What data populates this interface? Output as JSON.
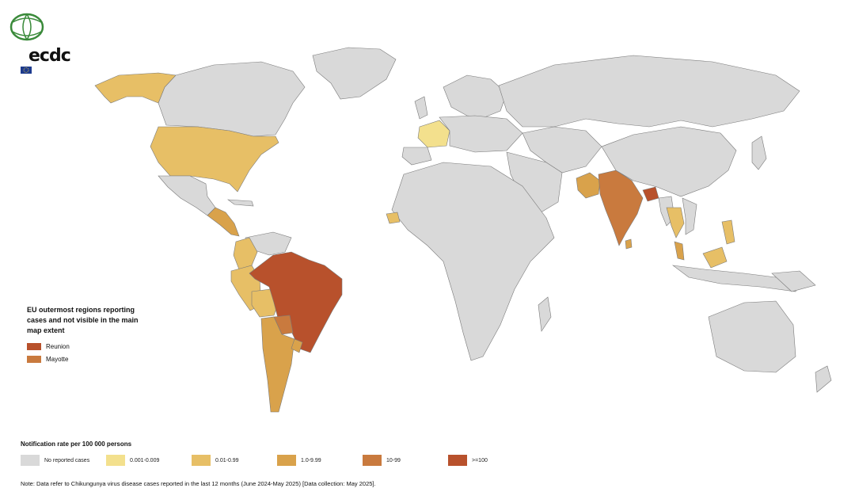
{
  "colors": {
    "no_data": "#d9d9d9",
    "c1": "#f3e08d",
    "c2": "#e7bf66",
    "c3": "#d9a24b",
    "c4": "#c97a3e",
    "c5": "#b8512c",
    "border": "#7a7a7a",
    "ocean": "#ffffff"
  },
  "logo": {
    "text": "ecdc"
  },
  "inset": {
    "title_lines": [
      "EU outermost regions reporting",
      "cases and not visible in the main",
      "map extent"
    ],
    "items": [
      {
        "label": "Reunion",
        "class": "c5"
      },
      {
        "label": "Mayotte",
        "class": "c4"
      }
    ]
  },
  "legend": {
    "title": "Notification rate per 100 000 persons",
    "items": [
      {
        "label": "No reported cases",
        "class": "no_data"
      },
      {
        "label": "0.001-0.009",
        "class": "c1"
      },
      {
        "label": "0.01-0.99",
        "class": "c2"
      },
      {
        "label": "1.0-9.99",
        "class": "c3"
      },
      {
        "label": "10-99",
        "class": "c4"
      },
      {
        "label": ">=100",
        "class": "c5"
      }
    ]
  },
  "note": "Note: Data refer to Chikungunya virus disease cases reported in the last 12 months (June 2024-May 2025) [Data collection: May 2025]."
}
